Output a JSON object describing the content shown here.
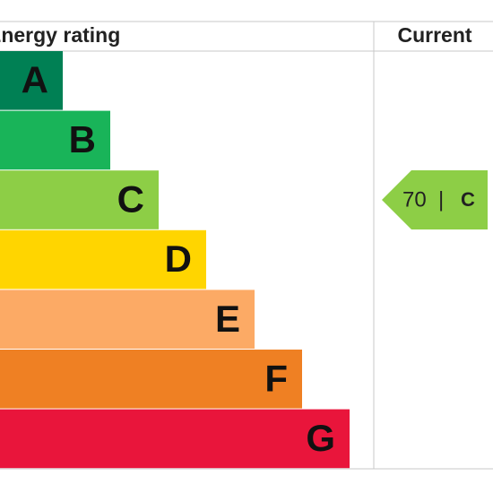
{
  "header": {
    "title": "Energy rating",
    "current": "Current"
  },
  "bands": [
    {
      "letter": "A",
      "color": "#008054"
    },
    {
      "letter": "B",
      "color": "#19b459"
    },
    {
      "letter": "C",
      "color": "#8dce46"
    },
    {
      "letter": "D",
      "color": "#ffd500"
    },
    {
      "letter": "E",
      "color": "#fcaa65"
    },
    {
      "letter": "F",
      "color": "#ef8023"
    },
    {
      "letter": "G",
      "color": "#e9153b"
    }
  ],
  "current": {
    "value": 70,
    "separator": "|",
    "rating": "C",
    "color": "#8dce46"
  }
}
